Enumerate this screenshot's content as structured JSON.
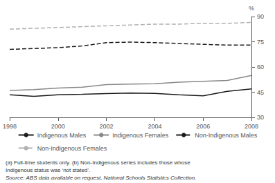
{
  "chart_data": {
    "type": "line",
    "ylabel": "%",
    "x": [
      1998,
      1999,
      2000,
      2001,
      2002,
      2003,
      2004,
      2005,
      2006,
      2007,
      2008
    ],
    "series": [
      {
        "name": "Indigenous Males",
        "color": "#1a1a1a",
        "line_style": "solid",
        "values": [
          43.5,
          42.5,
          43.5,
          43.8,
          44.2,
          44.5,
          44.3,
          43.5,
          42.8,
          45.5,
          47.0
        ]
      },
      {
        "name": "Indigenous Females",
        "color": "#888888",
        "line_style": "solid",
        "values": [
          46.0,
          46.5,
          47.5,
          48.0,
          49.5,
          49.8,
          50.0,
          51.0,
          51.5,
          52.0,
          55.0
        ]
      },
      {
        "name": "Non-Indigenous Males",
        "color": "#1a1a1a",
        "line_style": "dashed",
        "values": [
          70.5,
          71.0,
          71.5,
          72.5,
          74.5,
          74.8,
          74.5,
          74.0,
          73.5,
          73.0,
          73.0
        ]
      },
      {
        "name": "Non-Indigenous Females",
        "color": "#b0b0b0",
        "line_style": "dashed",
        "values": [
          82.5,
          83.0,
          83.5,
          84.0,
          84.5,
          85.0,
          85.5,
          85.5,
          86.0,
          86.0,
          86.5
        ]
      }
    ],
    "xlim": [
      1998,
      2008
    ],
    "xticks": [
      1998,
      2000,
      2002,
      2004,
      2006,
      2008
    ],
    "ylim": [
      30,
      90
    ],
    "yticks": [
      30,
      45,
      60,
      75,
      90
    ],
    "grid": false,
    "legend": "bottom",
    "annotations": [
      "(a) Full-time students only. (b) Non-Indigenous series includes those whose",
      "Indigenous status was ‘not stated’.",
      "Source: ABS data available on request, National Schools Statistics Collection."
    ]
  }
}
